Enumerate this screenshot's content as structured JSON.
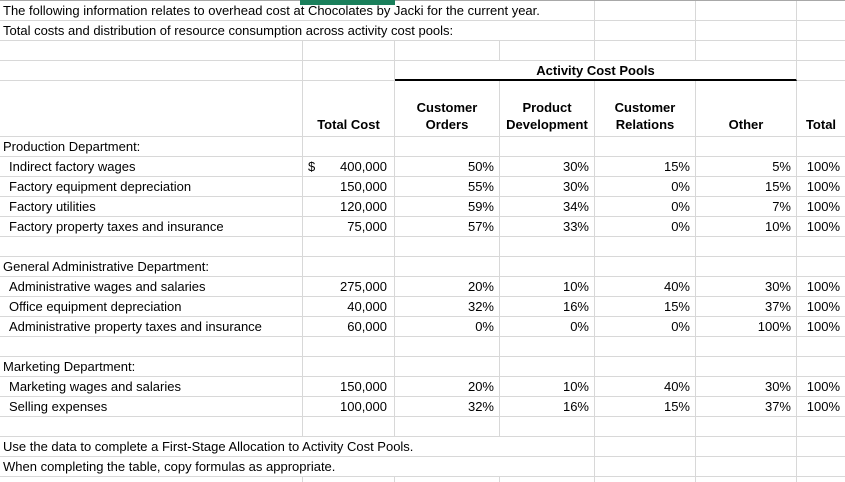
{
  "app": {
    "type": "spreadsheet-worksheet"
  },
  "colors": {
    "selection_green": "#1a7f5b",
    "gridline": "#d8d8d8",
    "group_header_rule": "#000000",
    "top_edge": "#a8a8a8"
  },
  "intro": {
    "line1": "The following information relates to overhead cost at Chocolates by Jacki for the current year.",
    "line2": "Total costs and distribution of resource consumption across activity cost pools:"
  },
  "header": {
    "group": "Activity Cost Pools",
    "total_cost": [
      "Total Cost"
    ],
    "customer_orders": [
      "Customer",
      "Orders"
    ],
    "product_development": [
      "Product",
      "Development"
    ],
    "customer_relations": [
      "Customer",
      "Relations"
    ],
    "other": [
      "Other"
    ],
    "total": [
      "Total"
    ]
  },
  "sections": [
    {
      "title": "Production Department:",
      "rows": [
        {
          "label": "Indirect factory wages",
          "currency": "$",
          "amount": "400,000",
          "pcts": [
            "50%",
            "30%",
            "15%",
            "5%",
            "100%"
          ]
        },
        {
          "label": "Factory equipment depreciation",
          "amount": "150,000",
          "pcts": [
            "55%",
            "30%",
            "0%",
            "15%",
            "100%"
          ]
        },
        {
          "label": "Factory utilities",
          "amount": "120,000",
          "pcts": [
            "59%",
            "34%",
            "0%",
            "7%",
            "100%"
          ]
        },
        {
          "label": "Factory property taxes and insurance",
          "amount": "75,000",
          "pcts": [
            "57%",
            "33%",
            "0%",
            "10%",
            "100%"
          ]
        }
      ]
    },
    {
      "title": "General Administrative Department:",
      "rows": [
        {
          "label": "Administrative wages and salaries",
          "amount": "275,000",
          "pcts": [
            "20%",
            "10%",
            "40%",
            "30%",
            "100%"
          ]
        },
        {
          "label": "Office equipment depreciation",
          "amount": "40,000",
          "pcts": [
            "32%",
            "16%",
            "15%",
            "37%",
            "100%"
          ]
        },
        {
          "label": "Administrative property taxes and insurance",
          "amount": "60,000",
          "pcts": [
            "0%",
            "0%",
            "0%",
            "100%",
            "100%"
          ]
        }
      ]
    },
    {
      "title": "Marketing Department:",
      "rows": [
        {
          "label": "Marketing wages and salaries",
          "amount": "150,000",
          "pcts": [
            "20%",
            "10%",
            "40%",
            "30%",
            "100%"
          ]
        },
        {
          "label": "Selling expenses",
          "amount": "100,000",
          "pcts": [
            "32%",
            "16%",
            "15%",
            "37%",
            "100%"
          ]
        }
      ]
    }
  ],
  "footer": {
    "line1": "Use the data to complete a First-Stage Allocation to Activity Cost Pools.",
    "line2": "When completing the table, copy formulas as appropriate."
  }
}
